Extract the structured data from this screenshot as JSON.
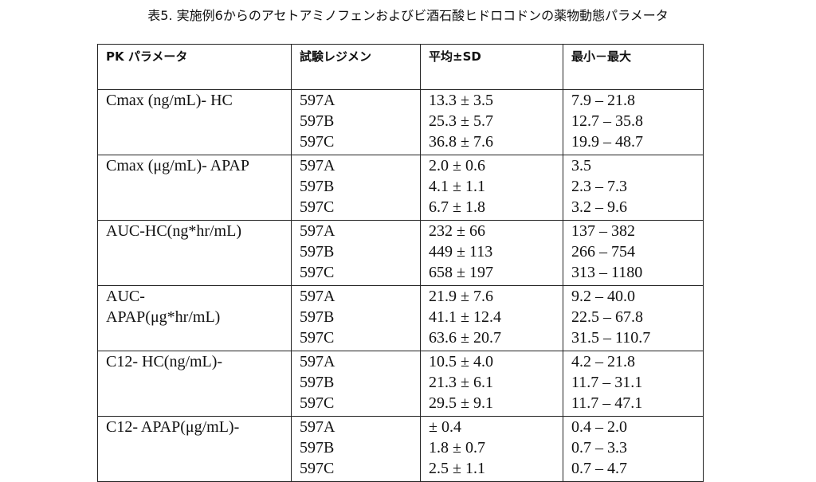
{
  "title": "表5. 実施例6からのアセトアミノフェンおよびビ酒石酸ヒドロコドンの薬物動態パラメータ",
  "table": {
    "header": [
      "PK パラメータ",
      "試験レジメン",
      "平均±SD",
      "最小－最大"
    ],
    "groups": [
      {
        "parameter": [
          "Cmax (ng/mL)- HC"
        ],
        "rows": [
          [
            "597A",
            "13.3 ± 3.5",
            "7.9 – 21.8"
          ],
          [
            "597B",
            "25.3 ± 5.7",
            "12.7 – 35.8"
          ],
          [
            "597C",
            "36.8 ± 7.6",
            "19.9 – 48.7"
          ]
        ]
      },
      {
        "parameter": [
          "Cmax (μg/mL)- APAP"
        ],
        "rows": [
          [
            "597A",
            "2.0 ± 0.6",
            "3.5"
          ],
          [
            "597B",
            "4.1 ± 1.1",
            "2.3 – 7.3"
          ],
          [
            "597C",
            "6.7 ± 1.8",
            "3.2 – 9.6"
          ]
        ]
      },
      {
        "parameter": [
          "AUC-HC(ng*hr/mL)"
        ],
        "rows": [
          [
            "597A",
            "232 ± 66",
            "137 – 382"
          ],
          [
            "597B",
            "449 ± 113",
            "266 – 754"
          ],
          [
            "597C",
            "658 ± 197",
            "313 – 1180"
          ]
        ]
      },
      {
        "parameter": [
          "AUC-",
          "APAP(μg*hr/mL)"
        ],
        "rows": [
          [
            "597A",
            "21.9 ± 7.6",
            "9.2 – 40.0"
          ],
          [
            "597B",
            "41.1 ± 12.4",
            "22.5 – 67.8"
          ],
          [
            "597C",
            "63.6 ± 20.7",
            "31.5 – 110.7"
          ]
        ]
      },
      {
        "parameter": [
          "C12- HC(ng/mL)-"
        ],
        "rows": [
          [
            "597A",
            "10.5 ± 4.0",
            "4.2 – 21.8"
          ],
          [
            "597B",
            "21.3 ± 6.1",
            "11.7 – 31.1"
          ],
          [
            "597C",
            "29.5 ± 9.1",
            "11.7 – 47.1"
          ]
        ]
      },
      {
        "parameter": [
          "C12- APAP(μg/mL)-"
        ],
        "rows": [
          [
            "597A",
            "± 0.4",
            "0.4 – 2.0"
          ],
          [
            "597B",
            "1.8 ± 0.7",
            "0.7 – 3.3"
          ],
          [
            "597C",
            "2.5 ± 1.1",
            "0.7 – 4.7"
          ]
        ]
      }
    ]
  }
}
